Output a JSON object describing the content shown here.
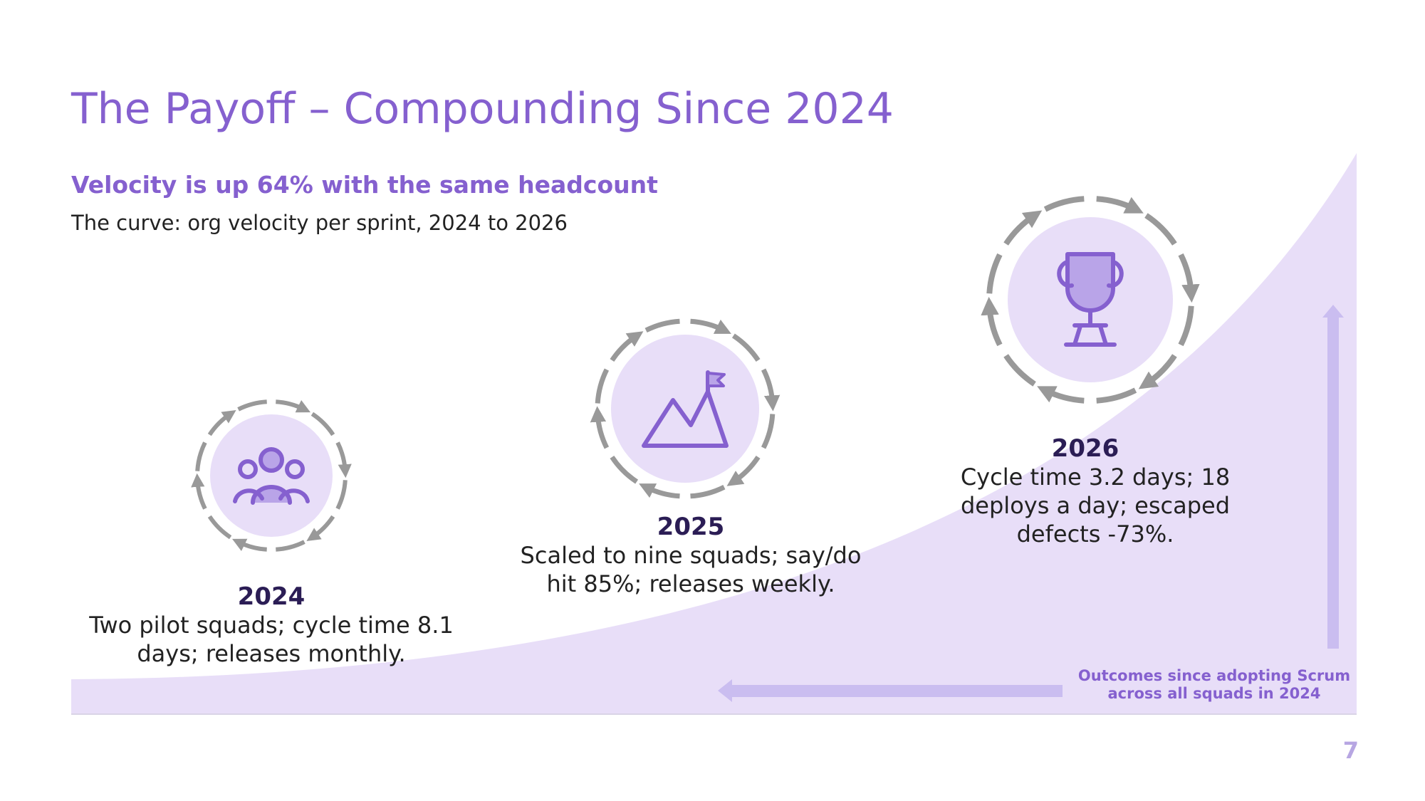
{
  "slide": {
    "title": "The Payoff – Compounding Since 2024",
    "subtitle": "Velocity is up 64% with the same headcount",
    "caption": "The curve: org velocity per sprint, 2024 to 2026",
    "page_number": "7"
  },
  "milestones": [
    {
      "year": "2024",
      "description": "Two pilot squads; cycle time 8.1 days; releases monthly.",
      "icon": "team-icon"
    },
    {
      "year": "2025",
      "description": "Scaled to nine squads; say/do hit 85%; releases weekly.",
      "icon": "mountain-flag-icon"
    },
    {
      "year": "2026",
      "description": "Cycle time 3.2 days; 18 deploys a day; escaped defects -73%.",
      "icon": "trophy-icon"
    }
  ],
  "annotation": {
    "outcomes": "Outcomes since adopting Scrum across all squads in 2024"
  },
  "colors": {
    "accent": "#8560cf",
    "curve_fill": "#e8def8",
    "icon_circle": "#e8def8",
    "arrow": "#cabdf0",
    "ring": "#999999",
    "year_text": "#2b1d55"
  }
}
